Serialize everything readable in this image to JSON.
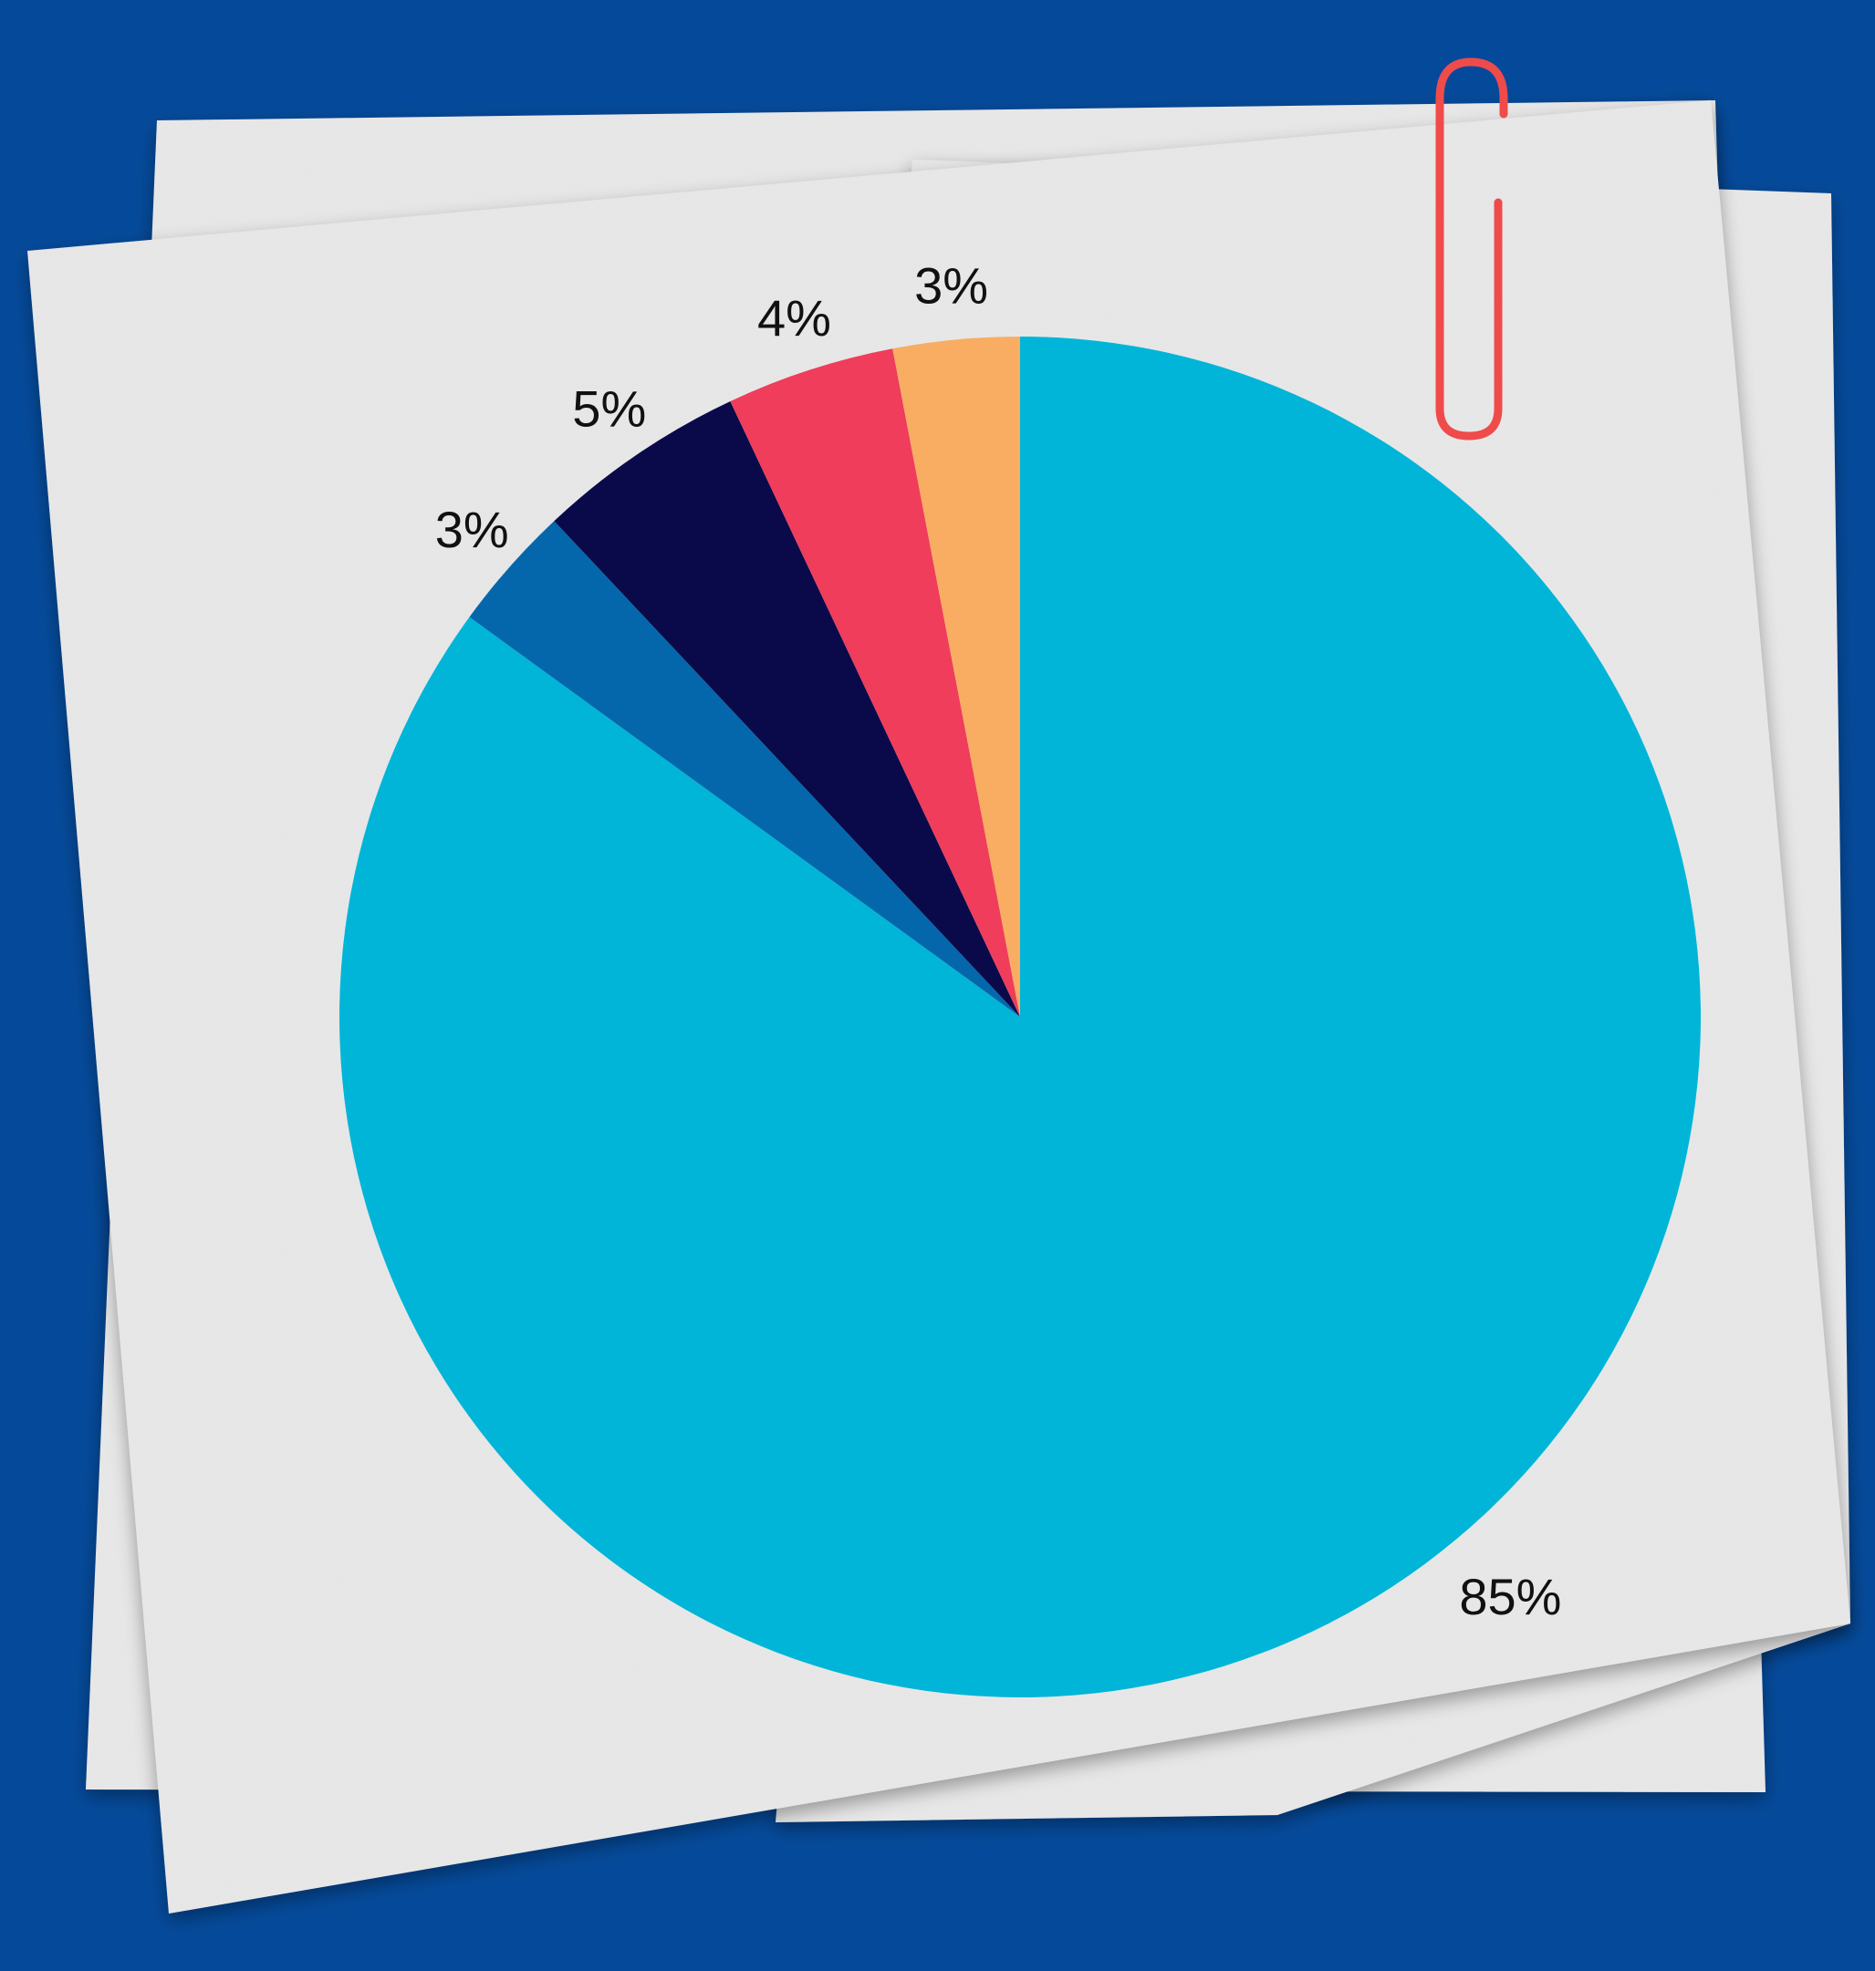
{
  "background_color": "#054a9a",
  "paper_color": "#e9e9e9",
  "paperclip_color": "#ef4b4b",
  "chart_data": {
    "type": "pie",
    "start": "top",
    "direction": "clockwise",
    "slices": [
      {
        "value": 85,
        "label": "85%",
        "color": "#00b5d8"
      },
      {
        "value": 3,
        "label": "3%",
        "color": "#0467ab"
      },
      {
        "value": 5,
        "label": "5%",
        "color": "#0a0a4a"
      },
      {
        "value": 4,
        "label": "4%",
        "color": "#ef3d5b"
      },
      {
        "value": 3,
        "label": "3%",
        "color": "#f8ad62"
      }
    ]
  }
}
